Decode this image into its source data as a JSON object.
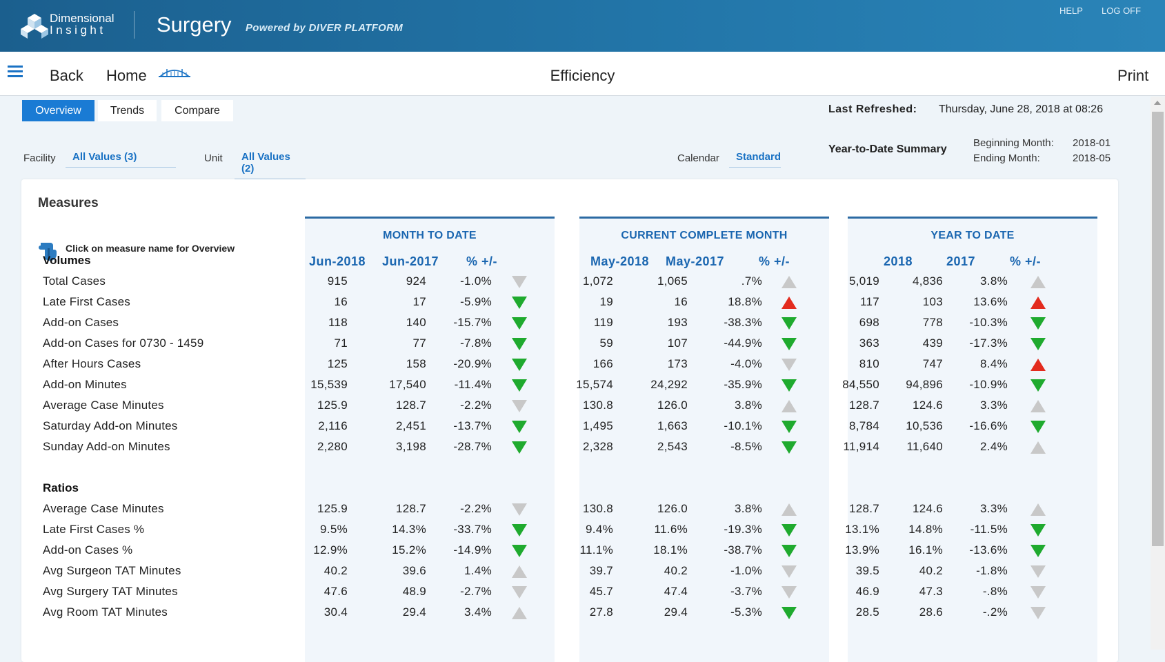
{
  "brand": {
    "line1": "Dimensional",
    "line2": "Insight"
  },
  "app_title": "Surgery",
  "powered_by": "Powered by DIVER PLATFORM",
  "top_links": {
    "help": "HELP",
    "logoff": "LOG OFF"
  },
  "nav": {
    "back": "Back",
    "home": "Home",
    "page_title": "Efficiency",
    "print": "Print"
  },
  "tabs": [
    "Overview",
    "Trends",
    "Compare"
  ],
  "active_tab": "Overview",
  "last_refreshed": {
    "label": "Last Refreshed:",
    "value": "Thursday, June 28, 2018 at 08:26"
  },
  "ytd_summary": {
    "title": "Year-to-Date Summary",
    "begin_label": "Beginning Month:",
    "begin_value": "2018-01",
    "end_label": "Ending Month:",
    "end_value": "2018-05"
  },
  "filters": {
    "facility": {
      "label": "Facility",
      "value": "All Values (3)"
    },
    "unit": {
      "label": "Unit",
      "value": "All Values (2)"
    },
    "calendar": {
      "label": "Calendar",
      "value": "Standard"
    }
  },
  "measures": {
    "title": "Measures",
    "hint": "Click on measure name for Overview"
  },
  "colors": {
    "header_blue": "#1f6ea3",
    "accent_blue": "#1a72c4",
    "down_good": "#1faa2e",
    "up_bad": "#e32b1e",
    "neutral": "#c8c8c8"
  },
  "panels": [
    {
      "title": "MONTH TO DATE",
      "cols": [
        "Jun-2018",
        "Jun-2017",
        "% +/-"
      ]
    },
    {
      "title": "CURRENT COMPLETE MONTH",
      "cols": [
        "May-2018",
        "May-2017",
        "% +/-"
      ]
    },
    {
      "title": "YEAR TO DATE",
      "cols": [
        "2018",
        "2017",
        "% +/-"
      ]
    }
  ],
  "sections": [
    {
      "name": "Volumes",
      "rows": [
        {
          "label": "Total Cases",
          "cells": [
            [
              "915",
              "924",
              "-1.0%",
              "down-grey"
            ],
            [
              "1,072",
              "1,065",
              ".7%",
              "up-grey"
            ],
            [
              "5,019",
              "4,836",
              "3.8%",
              "up-grey"
            ]
          ]
        },
        {
          "label": "Late First Cases",
          "cells": [
            [
              "16",
              "17",
              "-5.9%",
              "down-green"
            ],
            [
              "19",
              "16",
              "18.8%",
              "up-red"
            ],
            [
              "117",
              "103",
              "13.6%",
              "up-red"
            ]
          ]
        },
        {
          "label": "Add-on Cases",
          "cells": [
            [
              "118",
              "140",
              "-15.7%",
              "down-green"
            ],
            [
              "119",
              "193",
              "-38.3%",
              "down-green"
            ],
            [
              "698",
              "778",
              "-10.3%",
              "down-green"
            ]
          ]
        },
        {
          "label": "Add-on Cases for 0730 - 1459",
          "cells": [
            [
              "71",
              "77",
              "-7.8%",
              "down-green"
            ],
            [
              "59",
              "107",
              "-44.9%",
              "down-green"
            ],
            [
              "363",
              "439",
              "-17.3%",
              "down-green"
            ]
          ]
        },
        {
          "label": "After Hours Cases",
          "cells": [
            [
              "125",
              "158",
              "-20.9%",
              "down-green"
            ],
            [
              "166",
              "173",
              "-4.0%",
              "down-grey"
            ],
            [
              "810",
              "747",
              "8.4%",
              "up-red"
            ]
          ]
        },
        {
          "label": "Add-on Minutes",
          "cells": [
            [
              "15,539",
              "17,540",
              "-11.4%",
              "down-green"
            ],
            [
              "15,574",
              "24,292",
              "-35.9%",
              "down-green"
            ],
            [
              "84,550",
              "94,896",
              "-10.9%",
              "down-green"
            ]
          ]
        },
        {
          "label": "Average Case Minutes",
          "cells": [
            [
              "125.9",
              "128.7",
              "-2.2%",
              "down-grey"
            ],
            [
              "130.8",
              "126.0",
              "3.8%",
              "up-grey"
            ],
            [
              "128.7",
              "124.6",
              "3.3%",
              "up-grey"
            ]
          ]
        },
        {
          "label": "Saturday Add-on Minutes",
          "cells": [
            [
              "2,116",
              "2,451",
              "-13.7%",
              "down-green"
            ],
            [
              "1,495",
              "1,663",
              "-10.1%",
              "down-green"
            ],
            [
              "8,784",
              "10,536",
              "-16.6%",
              "down-green"
            ]
          ]
        },
        {
          "label": "Sunday Add-on Minutes",
          "cells": [
            [
              "2,280",
              "3,198",
              "-28.7%",
              "down-green"
            ],
            [
              "2,328",
              "2,543",
              "-8.5%",
              "down-green"
            ],
            [
              "11,914",
              "11,640",
              "2.4%",
              "up-grey"
            ]
          ]
        }
      ]
    },
    {
      "name": "Ratios",
      "rows": [
        {
          "label": "Average Case Minutes",
          "cells": [
            [
              "125.9",
              "128.7",
              "-2.2%",
              "down-grey"
            ],
            [
              "130.8",
              "126.0",
              "3.8%",
              "up-grey"
            ],
            [
              "128.7",
              "124.6",
              "3.3%",
              "up-grey"
            ]
          ]
        },
        {
          "label": "Late First Cases %",
          "cells": [
            [
              "9.5%",
              "14.3%",
              "-33.7%",
              "down-green"
            ],
            [
              "9.4%",
              "11.6%",
              "-19.3%",
              "down-green"
            ],
            [
              "13.1%",
              "14.8%",
              "-11.5%",
              "down-green"
            ]
          ]
        },
        {
          "label": "Add-on Cases %",
          "cells": [
            [
              "12.9%",
              "15.2%",
              "-14.9%",
              "down-green"
            ],
            [
              "11.1%",
              "18.1%",
              "-38.7%",
              "down-green"
            ],
            [
              "13.9%",
              "16.1%",
              "-13.6%",
              "down-green"
            ]
          ]
        },
        {
          "label": "Avg Surgeon TAT Minutes",
          "cells": [
            [
              "40.2",
              "39.6",
              "1.4%",
              "up-grey"
            ],
            [
              "39.7",
              "40.2",
              "-1.0%",
              "down-grey"
            ],
            [
              "39.5",
              "40.2",
              "-1.8%",
              "down-grey"
            ]
          ]
        },
        {
          "label": "Avg Surgery TAT Minutes",
          "cells": [
            [
              "47.6",
              "48.9",
              "-2.7%",
              "down-grey"
            ],
            [
              "45.7",
              "47.4",
              "-3.7%",
              "down-grey"
            ],
            [
              "46.9",
              "47.3",
              "-.8%",
              "down-grey"
            ]
          ]
        },
        {
          "label": "Avg Room TAT Minutes",
          "cells": [
            [
              "30.4",
              "29.4",
              "3.4%",
              "up-grey"
            ],
            [
              "27.8",
              "29.4",
              "-5.3%",
              "down-green"
            ],
            [
              "28.5",
              "28.6",
              "-.2%",
              "down-grey"
            ]
          ]
        }
      ]
    }
  ]
}
